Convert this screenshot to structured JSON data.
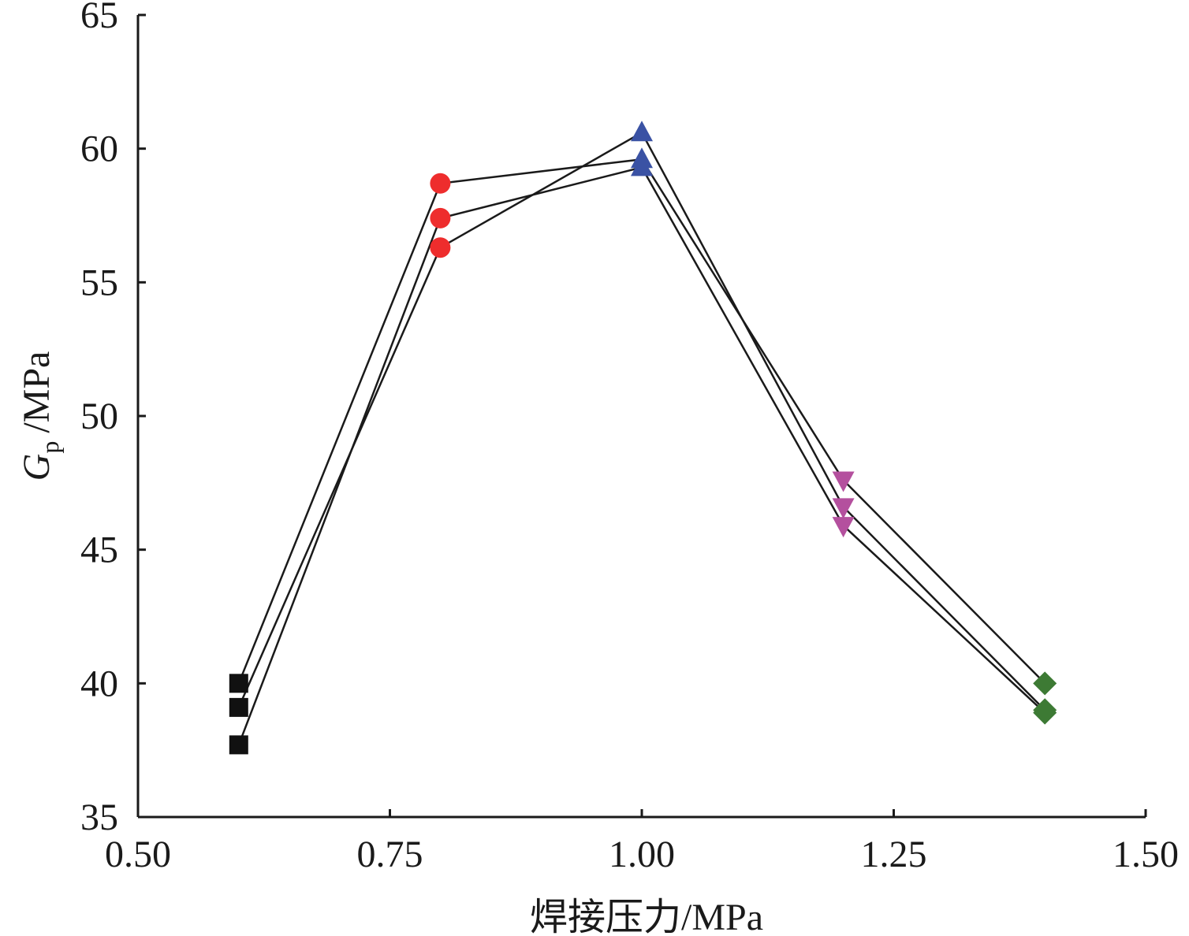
{
  "chart_data": {
    "type": "line",
    "xlabel": "焊接压力/MPa",
    "ylabel": {
      "symbol": "G",
      "subscript": "p",
      "unit": "/MPa"
    },
    "xlim": [
      0.5,
      1.5
    ],
    "ylim": [
      35,
      65
    ],
    "xticks": [
      "0.50",
      "0.75",
      "1.00",
      "1.25",
      "1.50"
    ],
    "yticks": [
      "35",
      "40",
      "45",
      "50",
      "55",
      "60",
      "65"
    ],
    "grid": false,
    "legend": "none",
    "x": [
      0.6,
      0.8,
      1.0,
      1.2,
      1.4
    ],
    "series": [
      {
        "values": [
          40.0,
          58.7,
          59.6,
          47.6,
          40.0
        ]
      },
      {
        "values": [
          39.1,
          56.3,
          60.6,
          46.6,
          39.0
        ]
      },
      {
        "values": [
          37.7,
          57.4,
          59.3,
          45.9,
          38.9
        ]
      }
    ],
    "point_styles": [
      {
        "x": 0.6,
        "marker": "square",
        "color": "#111111"
      },
      {
        "x": 0.8,
        "marker": "circle",
        "color": "#ee2d2d"
      },
      {
        "x": 1.0,
        "marker": "triangle-up",
        "color": "#3a52a4"
      },
      {
        "x": 1.2,
        "marker": "triangle-down",
        "color": "#b4509e"
      },
      {
        "x": 1.4,
        "marker": "diamond",
        "color": "#3d7a34"
      }
    ],
    "line_color": "#1a1a1a"
  }
}
